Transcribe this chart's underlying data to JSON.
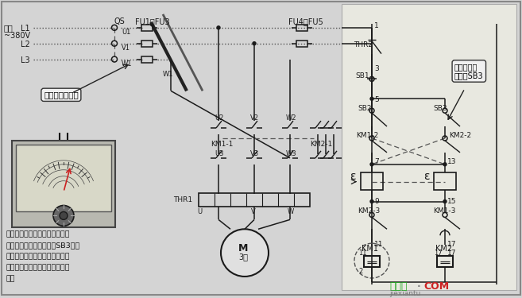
{
  "bg_color": "#d4d4d4",
  "line_color": "#1a1a1a",
  "dashed_color": "#555555",
  "watermark_green": "#22aa22",
  "watermark_red": "#cc2222",
  "watermark_gray": "#777777",
  "left_text_lines": [
    "将万用表表笔搭在控制电路的接",
    "线端，按下正向启动按钮SB3时，",
    "相当于用万用表测接触器线圈两",
    "端的直流电阻，正常时应有一定",
    "阻值"
  ]
}
